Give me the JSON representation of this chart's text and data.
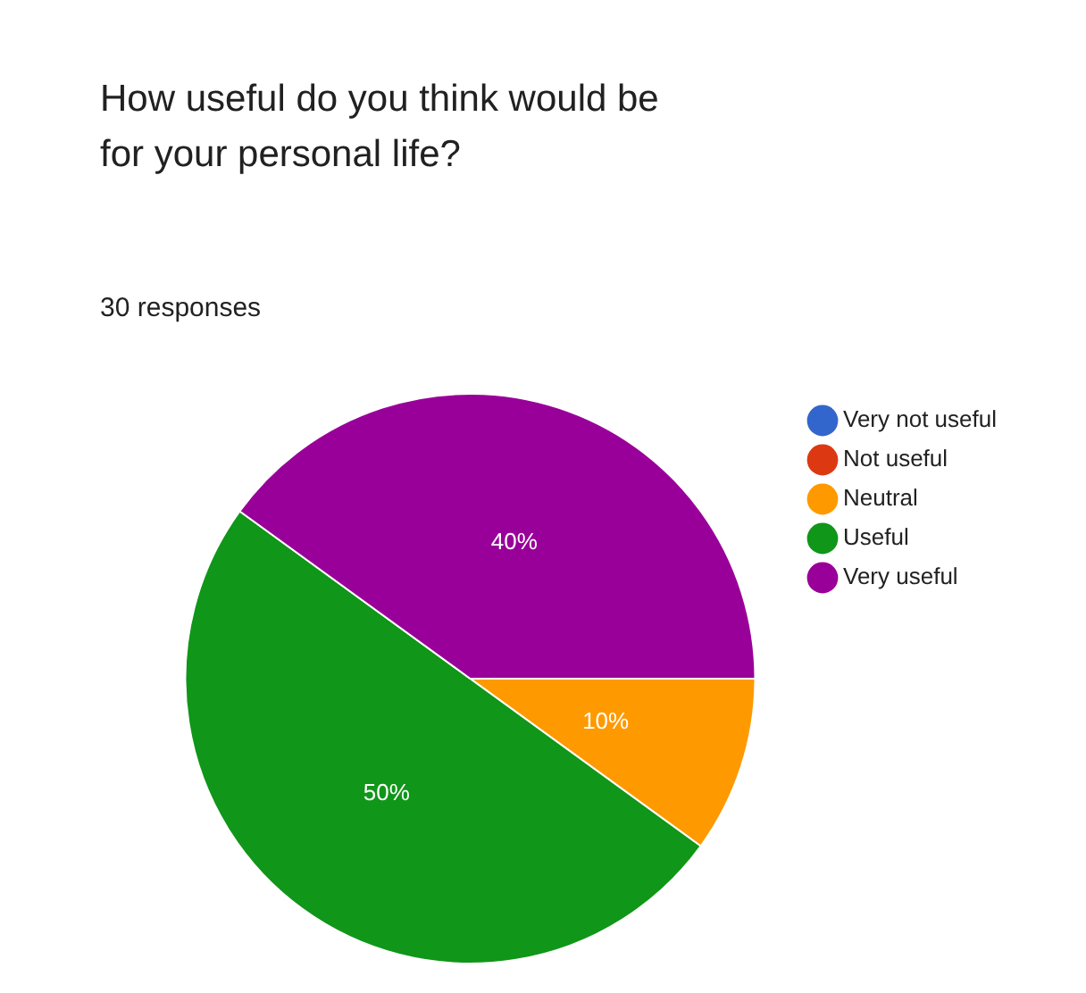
{
  "chart_data": {
    "type": "pie",
    "title": "How useful do you think would be for your personal life?",
    "subtitle": "30 responses",
    "categories": [
      "Very not useful",
      "Not useful",
      "Neutral",
      "Useful",
      "Very useful"
    ],
    "values": [
      0,
      0,
      10,
      50,
      40
    ],
    "colors": [
      "#3366cc",
      "#dc3912",
      "#ff9900",
      "#109618",
      "#990099"
    ],
    "value_labels": [
      null,
      null,
      "10%",
      "50%",
      "40%"
    ],
    "legend": "right"
  }
}
